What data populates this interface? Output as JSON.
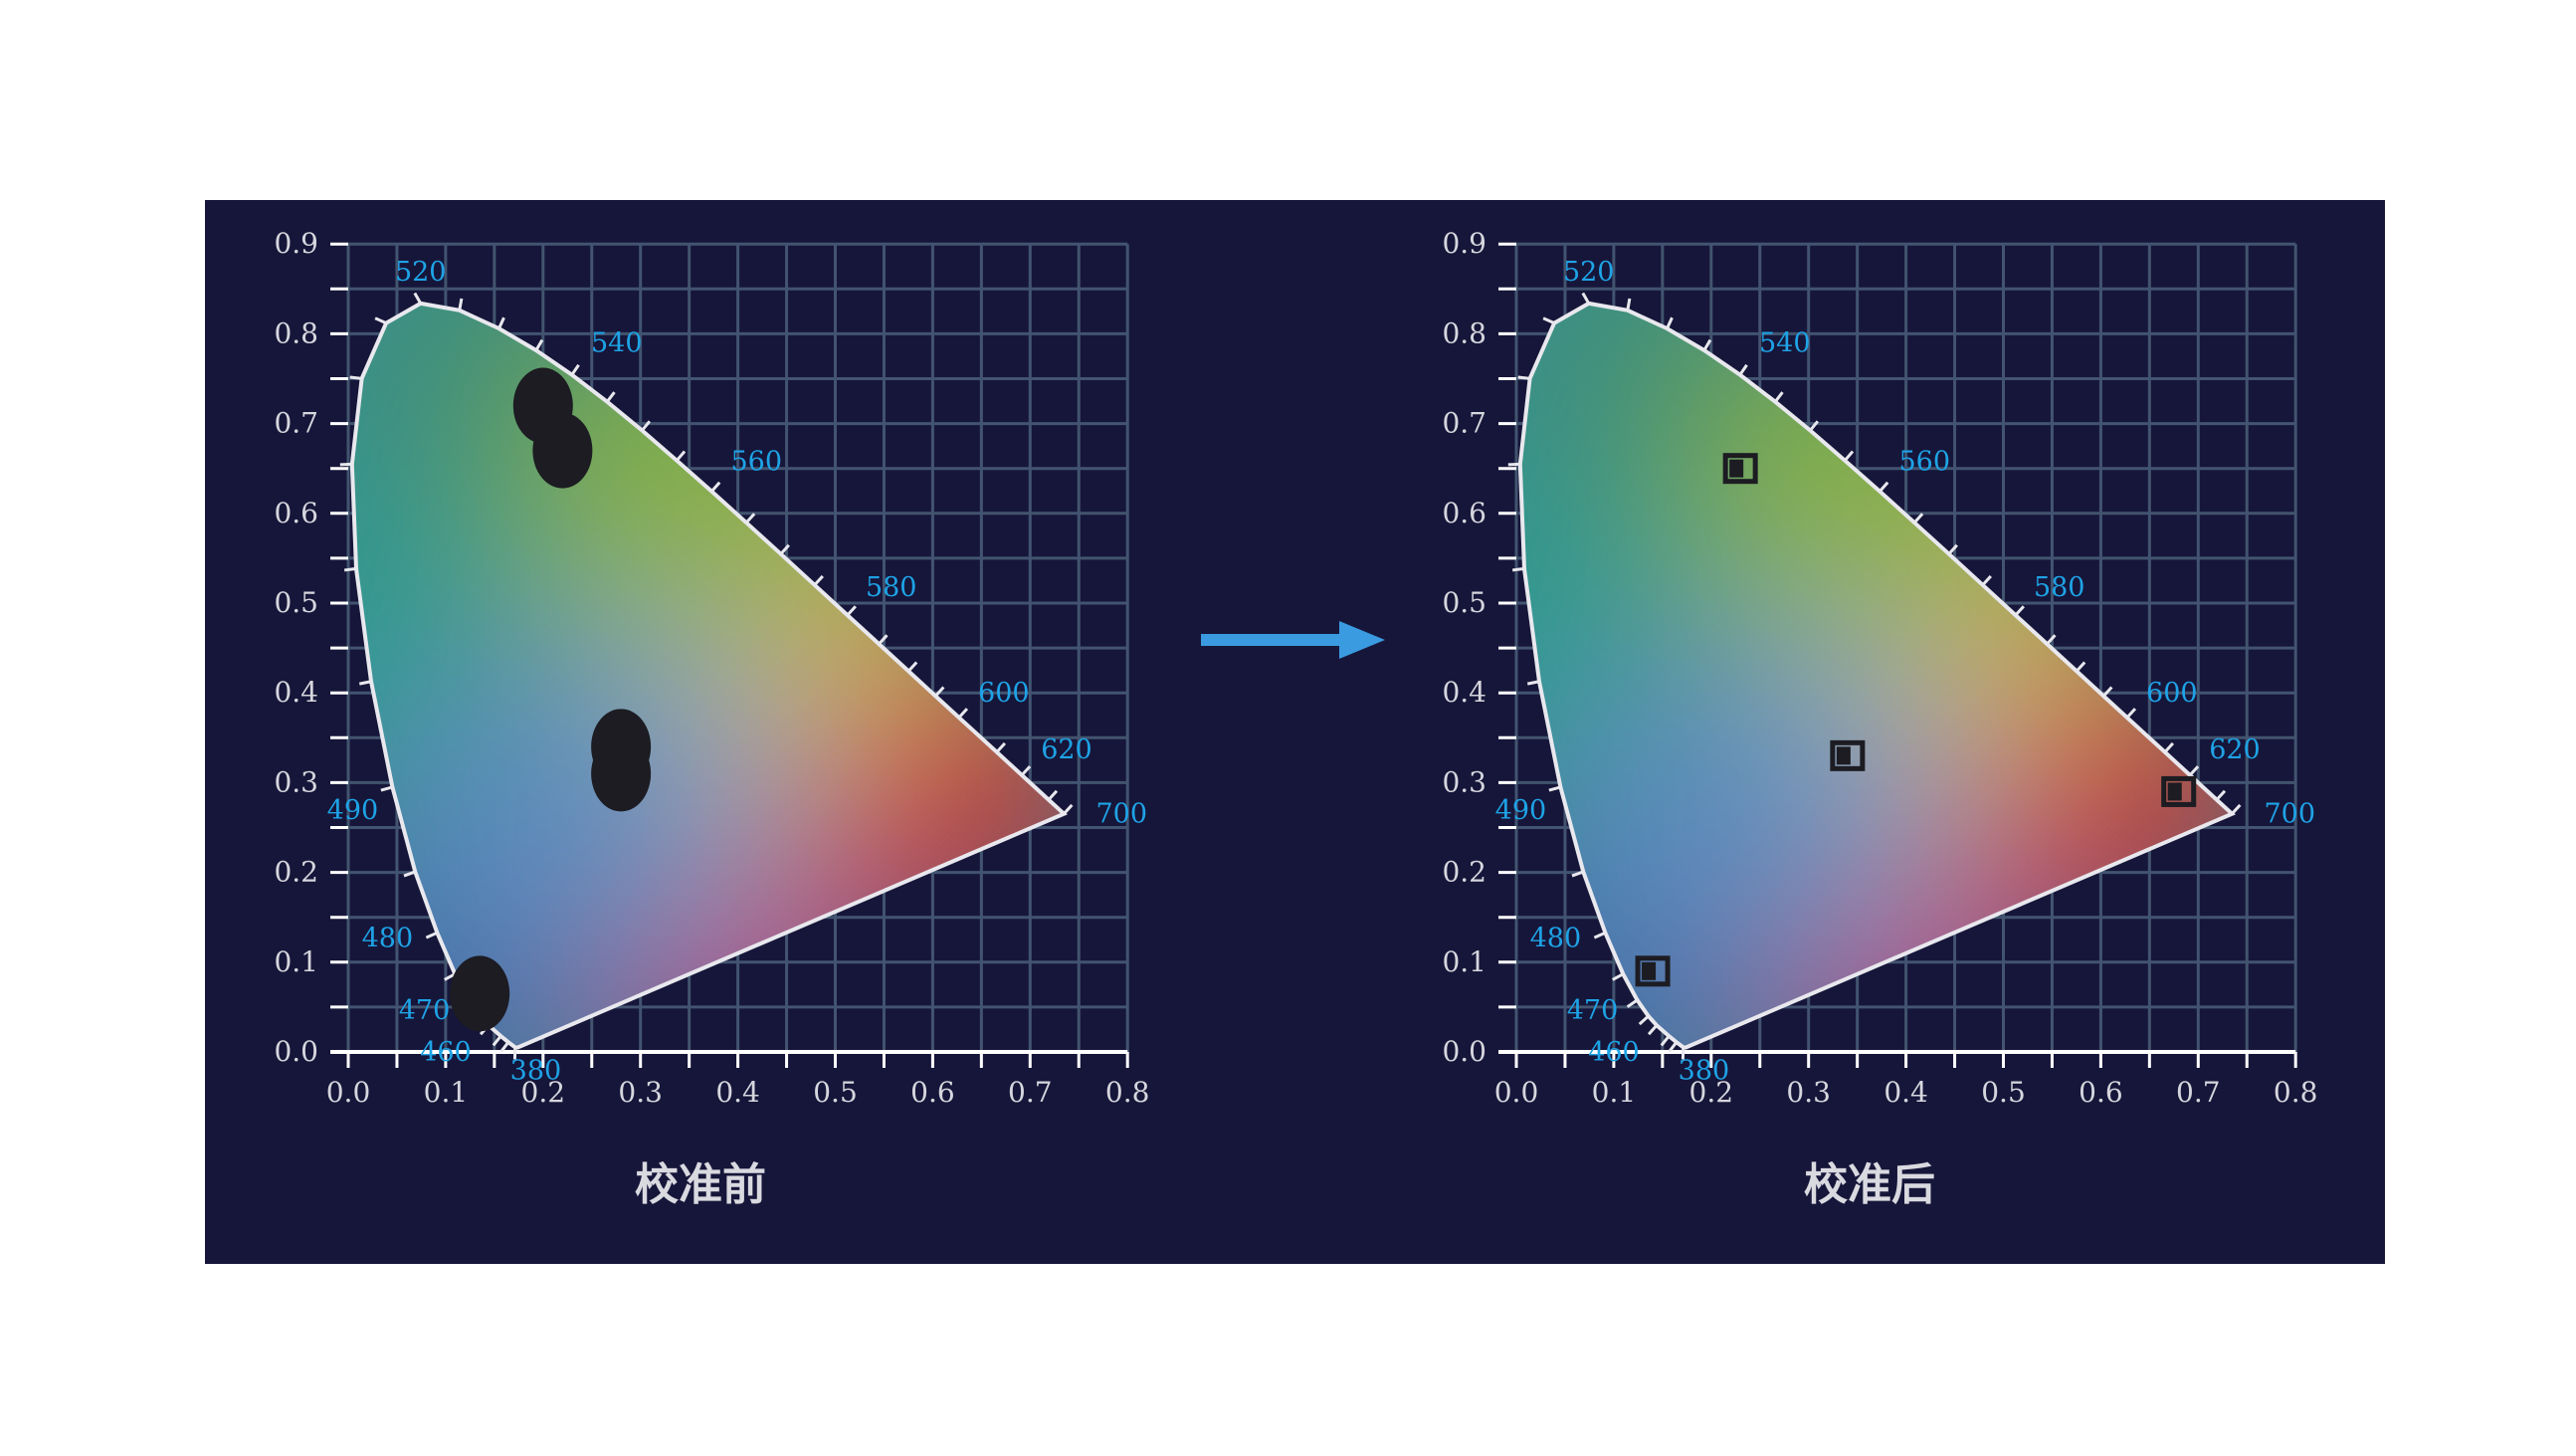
{
  "colors": {
    "background": "#16163a",
    "grid": "#42546f",
    "axis": "#ffffff",
    "wavelength_label": "#1ea3e6",
    "arrow": "#3a9be0",
    "marker": "#1c1c22"
  },
  "arrow": {
    "icon": "right-arrow-icon"
  },
  "chart_data": [
    {
      "type": "scatter",
      "title": "校准前",
      "xlim": [
        0.0,
        0.8
      ],
      "ylim": [
        0.0,
        0.9
      ],
      "grid": true,
      "x_ticks": [
        "0.0",
        "0.1",
        "0.2",
        "0.3",
        "0.4",
        "0.5",
        "0.6",
        "0.7",
        "0.8"
      ],
      "y_ticks": [
        "0.0",
        "0.1",
        "0.2",
        "0.3",
        "0.4",
        "0.5",
        "0.6",
        "0.7",
        "0.8",
        "0.9"
      ],
      "wavelength_labels": [
        {
          "label": "520",
          "x": 0.0743,
          "y": 0.8338
        },
        {
          "label": "540",
          "x": 0.2296,
          "y": 0.7543
        },
        {
          "label": "560",
          "x": 0.3731,
          "y": 0.6245
        },
        {
          "label": "580",
          "x": 0.5125,
          "y": 0.4866
        },
        {
          "label": "600",
          "x": 0.627,
          "y": 0.3725
        },
        {
          "label": "620",
          "x": 0.6915,
          "y": 0.3083
        },
        {
          "label": "700",
          "x": 0.7347,
          "y": 0.2653
        },
        {
          "label": "490",
          "x": 0.0454,
          "y": 0.295
        },
        {
          "label": "480",
          "x": 0.0913,
          "y": 0.1327
        },
        {
          "label": "470",
          "x": 0.1241,
          "y": 0.0578
        },
        {
          "label": "460",
          "x": 0.144,
          "y": 0.0297
        },
        {
          "label": "380",
          "x": 0.1741,
          "y": 0.005
        }
      ],
      "marker_style": "cluster",
      "points": [
        {
          "x": 0.2,
          "y": 0.72
        },
        {
          "x": 0.22,
          "y": 0.67
        },
        {
          "x": 0.28,
          "y": 0.34
        },
        {
          "x": 0.28,
          "y": 0.31
        },
        {
          "x": 0.135,
          "y": 0.065
        }
      ]
    },
    {
      "type": "scatter",
      "title": "校准后",
      "xlim": [
        0.0,
        0.8
      ],
      "ylim": [
        0.0,
        0.9
      ],
      "grid": true,
      "x_ticks": [
        "0.0",
        "0.1",
        "0.2",
        "0.3",
        "0.4",
        "0.5",
        "0.6",
        "0.7",
        "0.8"
      ],
      "y_ticks": [
        "0.0",
        "0.1",
        "0.2",
        "0.3",
        "0.4",
        "0.5",
        "0.6",
        "0.7",
        "0.8",
        "0.9"
      ],
      "wavelength_labels": [
        {
          "label": "520",
          "x": 0.0743,
          "y": 0.8338
        },
        {
          "label": "540",
          "x": 0.2296,
          "y": 0.7543
        },
        {
          "label": "560",
          "x": 0.3731,
          "y": 0.6245
        },
        {
          "label": "580",
          "x": 0.5125,
          "y": 0.4866
        },
        {
          "label": "600",
          "x": 0.627,
          "y": 0.3725
        },
        {
          "label": "620",
          "x": 0.6915,
          "y": 0.3083
        },
        {
          "label": "700",
          "x": 0.7347,
          "y": 0.2653
        },
        {
          "label": "490",
          "x": 0.0454,
          "y": 0.295
        },
        {
          "label": "480",
          "x": 0.0913,
          "y": 0.1327
        },
        {
          "label": "470",
          "x": 0.1241,
          "y": 0.0578
        },
        {
          "label": "460",
          "x": 0.144,
          "y": 0.0297
        },
        {
          "label": "380",
          "x": 0.1741,
          "y": 0.005
        }
      ],
      "marker_style": "square",
      "points": [
        {
          "x": 0.23,
          "y": 0.65
        },
        {
          "x": 0.34,
          "y": 0.33
        },
        {
          "x": 0.68,
          "y": 0.29
        },
        {
          "x": 0.14,
          "y": 0.09
        }
      ]
    }
  ]
}
